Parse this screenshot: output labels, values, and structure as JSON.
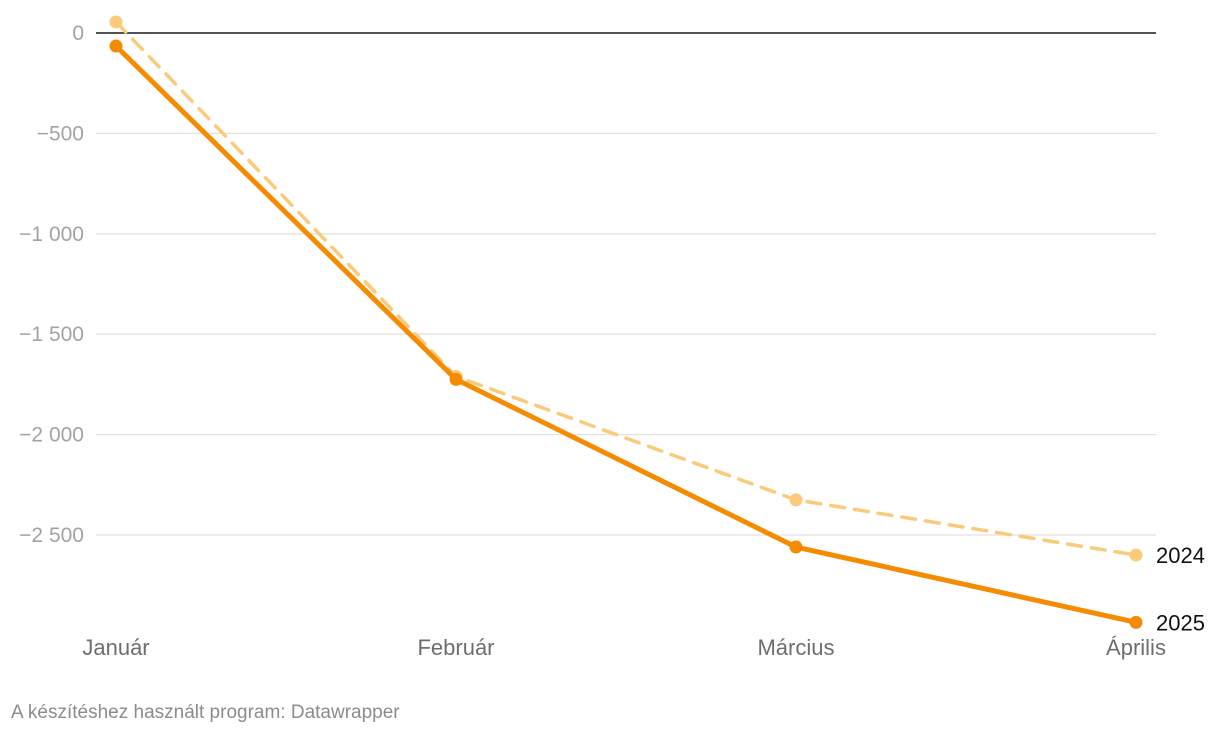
{
  "chart_data": {
    "type": "line",
    "categories": [
      "Január",
      "Február",
      "Március",
      "Április"
    ],
    "y_ticks": [
      {
        "value": 0,
        "label": "0"
      },
      {
        "value": -500,
        "label": "−500"
      },
      {
        "value": -1000,
        "label": "−1 000"
      },
      {
        "value": -1500,
        "label": "−1 500"
      },
      {
        "value": -2000,
        "label": "−2 000"
      },
      {
        "value": -2500,
        "label": "−2 500"
      }
    ],
    "ylim": [
      -2950,
      60
    ],
    "grid": true,
    "series": [
      {
        "name": "2024",
        "values": [
          55,
          -1710,
          -2325,
          -2600
        ],
        "color": "#fbca7a",
        "style": "dashed"
      },
      {
        "name": "2025",
        "values": [
          -65,
          -1725,
          -2560,
          -2935
        ],
        "color": "#f58b00",
        "style": "solid"
      }
    ]
  },
  "footer": {
    "credit": "A készítéshez használt program: Datawrapper"
  }
}
